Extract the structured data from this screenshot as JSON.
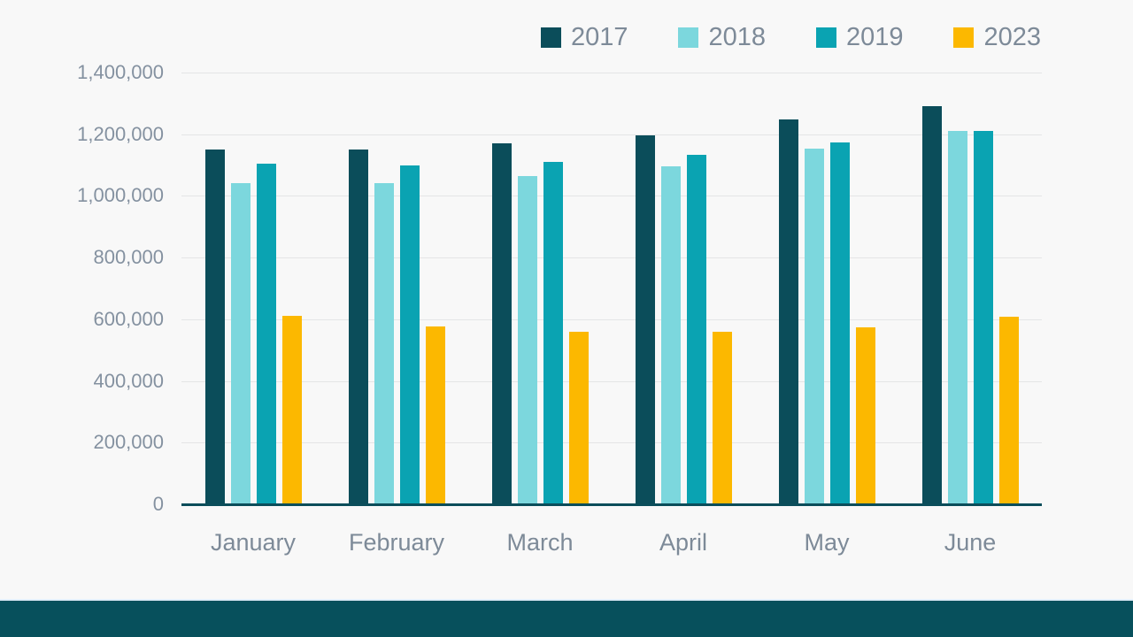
{
  "slide": {
    "background_color": "#f8f8f8",
    "footer_band_color": "#07505c",
    "footer_hairline_color": "#e2effb"
  },
  "chart_data": {
    "type": "bar",
    "title": "",
    "categories": [
      "January",
      "February",
      "March",
      "April",
      "May",
      "June"
    ],
    "series": [
      {
        "name": "2017",
        "color": "#0b4d5a",
        "values": [
          1150000,
          1150000,
          1170000,
          1195000,
          1248000,
          1290000
        ]
      },
      {
        "name": "2018",
        "color": "#7cd7dd",
        "values": [
          1040000,
          1040000,
          1063000,
          1097000,
          1152000,
          1212000
        ]
      },
      {
        "name": "2019",
        "color": "#0aa3b2",
        "values": [
          1105000,
          1098000,
          1110000,
          1133000,
          1174000,
          1212000
        ]
      },
      {
        "name": "2023",
        "color": "#fcb800",
        "values": [
          612000,
          576000,
          558000,
          558000,
          574000,
          607000
        ]
      }
    ],
    "y_axis": {
      "min": 0,
      "max": 1400000,
      "step": 200000,
      "tick_labels": [
        "0",
        "200,000",
        "400,000",
        "600,000",
        "800,000",
        "1,000,000",
        "1,200,000",
        "1,400,000"
      ]
    },
    "legend_position": "top-right",
    "grid": true,
    "axis_color": "#0b4d5a",
    "gridline_color": "#e4e5e6",
    "label_color": "#7d8a98"
  }
}
